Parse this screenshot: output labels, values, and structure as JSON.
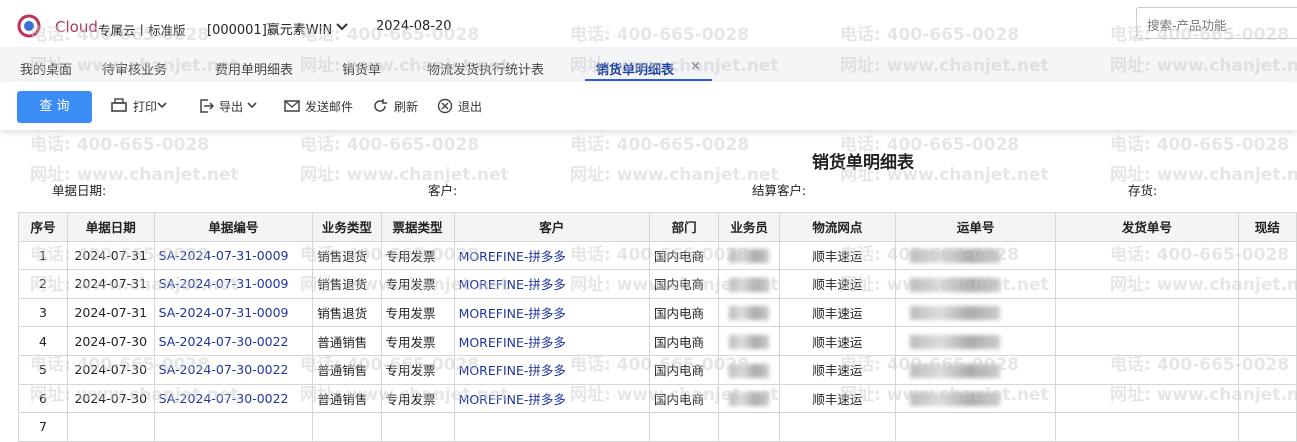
{
  "header": {
    "logo": "Cloud",
    "edition": "专属云丨标准版",
    "account": "[000001]赢元素WIN",
    "date": "2024-08-20",
    "search": "搜索-产品功能"
  },
  "tabs": {
    "items": [
      "我的桌面",
      "待审核业务",
      "费用单明细表",
      "销货单",
      "物流发货执行统计表",
      "销货单明细表"
    ],
    "active": 5,
    "close": "×"
  },
  "toolbar": {
    "query": "查 询",
    "print": "打印",
    "export": "导出",
    "email": "发送邮件",
    "refresh": "刷新",
    "exit": "退出"
  },
  "report": {
    "title": "销货单明细表",
    "filters": [
      "单据日期:",
      "客户:",
      "结算客户:",
      "存货:"
    ]
  },
  "table": {
    "columns": [
      "序号",
      "单据日期",
      "单据编号",
      "业务类型",
      "票据类型",
      "客户",
      "部门",
      "业务员",
      "物流网点",
      "运单号",
      "发货单号",
      "现结"
    ],
    "rows": [
      {
        "no": "1",
        "date": "2024-07-31",
        "doc": "SA-2024-07-31-0009",
        "biz": "销售退货",
        "bill": "专用发票",
        "customer": "MOREFINE-拼多多",
        "dept": "国内电商",
        "site": "顺丰速运"
      },
      {
        "no": "2",
        "date": "2024-07-31",
        "doc": "SA-2024-07-31-0009",
        "biz": "销售退货",
        "bill": "专用发票",
        "customer": "MOREFINE-拼多多",
        "dept": "国内电商",
        "site": "顺丰速运"
      },
      {
        "no": "3",
        "date": "2024-07-31",
        "doc": "SA-2024-07-31-0009",
        "biz": "销售退货",
        "bill": "专用发票",
        "customer": "MOREFINE-拼多多",
        "dept": "国内电商",
        "site": "顺丰速运"
      },
      {
        "no": "4",
        "date": "2024-07-30",
        "doc": "SA-2024-07-30-0022",
        "biz": "普通销售",
        "bill": "专用发票",
        "customer": "MOREFINE-拼多多",
        "dept": "国内电商",
        "site": "顺丰速运"
      },
      {
        "no": "5",
        "date": "2024-07-30",
        "doc": "SA-2024-07-30-0022",
        "biz": "普通销售",
        "bill": "专用发票",
        "customer": "MOREFINE-拼多多",
        "dept": "国内电商",
        "site": "顺丰速运"
      },
      {
        "no": "6",
        "date": "2024-07-30",
        "doc": "SA-2024-07-30-0022",
        "biz": "普通销售",
        "bill": "专用发票",
        "customer": "MOREFINE-拼多多",
        "dept": "国内电商",
        "site": "顺丰速运"
      },
      {
        "no": "7"
      }
    ]
  },
  "watermark": {
    "phone": "电话: 400-665-0028",
    "site": "网址: www.chanjet.net"
  }
}
